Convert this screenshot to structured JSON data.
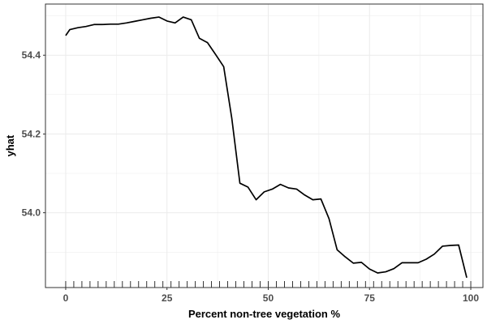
{
  "chart_data": {
    "type": "line",
    "xlabel": "Percent non-tree vegetation %",
    "ylabel": "yhat",
    "xlim": [
      -5,
      103
    ],
    "ylim": [
      53.81,
      54.53
    ],
    "grid": true,
    "x_ticks": [
      0,
      25,
      50,
      75,
      100
    ],
    "x_tick_labels": [
      "0",
      "25",
      "50",
      "75",
      "100"
    ],
    "y_ticks": [
      54.0,
      54.2,
      54.4
    ],
    "y_tick_labels": [
      "54.0",
      "54.2",
      "54.4"
    ],
    "series": [
      {
        "x": [
          0,
          1,
          3,
          5,
          7,
          9,
          11,
          13,
          15,
          17,
          19,
          21,
          23,
          25,
          27,
          29,
          31,
          33,
          35,
          37,
          39,
          41,
          43,
          45,
          47,
          49,
          51,
          53,
          55,
          57,
          59,
          61,
          63,
          65,
          67,
          69,
          71,
          73,
          75,
          77,
          79,
          81,
          83,
          85,
          87,
          89,
          91,
          93,
          95,
          97,
          99
        ],
        "y": [
          54.45,
          54.465,
          54.47,
          54.473,
          54.478,
          54.478,
          54.479,
          54.479,
          54.482,
          54.486,
          54.49,
          54.494,
          54.497,
          54.487,
          54.482,
          54.497,
          54.49,
          54.443,
          54.432,
          54.402,
          54.371,
          54.24,
          54.075,
          54.065,
          54.033,
          54.053,
          54.06,
          54.072,
          54.063,
          54.06,
          54.045,
          54.033,
          54.035,
          53.985,
          53.906,
          53.888,
          53.872,
          53.874,
          53.857,
          53.847,
          53.85,
          53.858,
          53.873,
          53.873,
          53.873,
          53.882,
          53.895,
          53.915,
          53.917,
          53.918,
          53.835
        ]
      }
    ],
    "rug_x": [
      0,
      2,
      4,
      6,
      8,
      10,
      12,
      14,
      16,
      18,
      20,
      22,
      24,
      26,
      28,
      30,
      32,
      34,
      36,
      38,
      40,
      42,
      44,
      46,
      48,
      50,
      52,
      54,
      56,
      58,
      60,
      62,
      64,
      66,
      68,
      70,
      72,
      74,
      76,
      78,
      80,
      82,
      84,
      86,
      88,
      90,
      92,
      94,
      96,
      98,
      100
    ]
  },
  "colors": {
    "line": "#000000",
    "grid": "#ebebeb",
    "panel_border": "#333333",
    "rug": "#000000"
  }
}
